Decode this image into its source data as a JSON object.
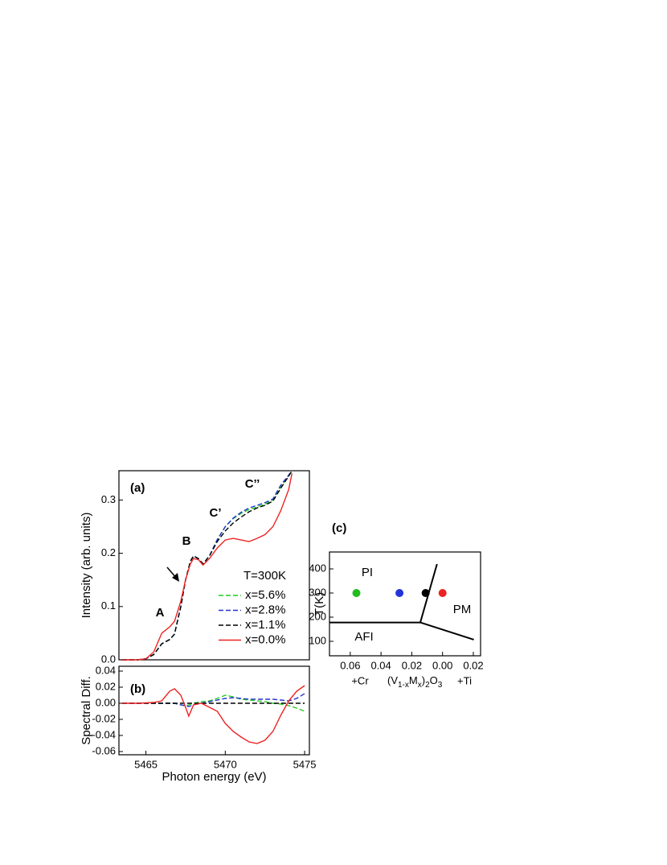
{
  "chart_data": [
    {
      "type": "line",
      "panel_label": "(a)",
      "ylabel": "Intensity (arb. units)",
      "xlim": [
        5463.3,
        5475.3
      ],
      "ylim": [
        0,
        0.355
      ],
      "yticks": [
        {
          "value": 0,
          "label": "0.0"
        },
        0.1,
        0.2,
        0.3
      ],
      "annotations": [
        "A",
        "B",
        "C’",
        "C’’"
      ],
      "legend_title": "T=300K",
      "x": [
        5463.5,
        5464.5,
        5465,
        5465.5,
        5466,
        5466.5,
        5466.8,
        5467.2,
        5467.5,
        5467.8,
        5468,
        5468.3,
        5468.6,
        5469,
        5469.5,
        5470,
        5470.5,
        5471,
        5471.5,
        5472,
        5472.5,
        5473,
        5473.5,
        5474,
        5474.2
      ],
      "series": [
        {
          "name": "x=5.6%",
          "color": "#22cc22",
          "style": "dashed",
          "values": [
            0,
            0,
            0.002,
            0.01,
            0.03,
            0.038,
            0.048,
            0.1,
            0.15,
            0.185,
            0.195,
            0.19,
            0.18,
            0.195,
            0.225,
            0.25,
            0.265,
            0.275,
            0.282,
            0.287,
            0.292,
            0.3,
            0.325,
            0.345,
            0.355
          ]
        },
        {
          "name": "x=2.8%",
          "color": "#2233cc",
          "style": "dashed",
          "values": [
            0,
            0,
            0.002,
            0.01,
            0.03,
            0.038,
            0.048,
            0.1,
            0.15,
            0.185,
            0.195,
            0.19,
            0.18,
            0.195,
            0.226,
            0.25,
            0.266,
            0.277,
            0.285,
            0.29,
            0.295,
            0.302,
            0.328,
            0.347,
            0.355
          ]
        },
        {
          "name": "x=1.1%",
          "color": "#000000",
          "style": "dashed",
          "values": [
            0,
            0,
            0.002,
            0.01,
            0.03,
            0.038,
            0.048,
            0.1,
            0.15,
            0.185,
            0.195,
            0.19,
            0.18,
            0.195,
            0.222,
            0.242,
            0.257,
            0.268,
            0.278,
            0.285,
            0.29,
            0.298,
            0.322,
            0.345,
            0.355
          ]
        },
        {
          "name": "x=0.0%",
          "color": "#ee2222",
          "style": "solid",
          "values": [
            0,
            0,
            0.002,
            0.015,
            0.05,
            0.062,
            0.072,
            0.11,
            0.15,
            0.18,
            0.19,
            0.188,
            0.178,
            0.19,
            0.21,
            0.225,
            0.228,
            0.225,
            0.222,
            0.228,
            0.235,
            0.25,
            0.28,
            0.32,
            0.35
          ]
        }
      ]
    },
    {
      "type": "line",
      "panel_label": "(b)",
      "ylabel": "Spectral Diff.",
      "xlabel": "Photon energy (eV)",
      "xlim": [
        5463.3,
        5475.3
      ],
      "ylim": [
        -0.064,
        0.046
      ],
      "xticks": [
        5465,
        5470,
        5475
      ],
      "yticks": [
        0.04,
        0.02,
        {
          "value": 0,
          "label": "0.00"
        },
        -0.02,
        -0.04,
        -0.06
      ],
      "x": [
        5463.5,
        5464.5,
        5465.5,
        5466,
        5466.5,
        5466.8,
        5467.2,
        5467.5,
        5467.7,
        5468,
        5468.5,
        5469,
        5469.5,
        5470,
        5470.5,
        5471,
        5471.5,
        5472,
        5472.5,
        5473,
        5473.5,
        5474,
        5474.5,
        5475
      ],
      "series": [
        {
          "color": "#22cc22",
          "style": "dashed",
          "values": [
            0,
            0,
            0,
            0,
            0,
            0,
            -0.002,
            -0.003,
            -0.002,
            0,
            0.002,
            0.003,
            0.006,
            0.01,
            0.008,
            0.005,
            0.004,
            0.003,
            0.002,
            0,
            -0.001,
            -0.003,
            -0.006,
            -0.01
          ]
        },
        {
          "color": "#2233cc",
          "style": "dashed",
          "values": [
            0,
            0,
            0,
            0,
            0,
            0,
            -0.002,
            -0.003,
            -0.004,
            -0.002,
            0,
            0.002,
            0.004,
            0.006,
            0.007,
            0.006,
            0.005,
            0.005,
            0.005,
            0.005,
            0.004,
            0.003,
            0.006,
            0.012
          ]
        },
        {
          "color": "#000000",
          "style": "dashed",
          "values": [
            0,
            0,
            0,
            0,
            0,
            0,
            0,
            0,
            0,
            0,
            0,
            0,
            0,
            0,
            0,
            0,
            0,
            0,
            0,
            0,
            0,
            0,
            0,
            0
          ]
        },
        {
          "color": "#ee2222",
          "style": "solid",
          "values": [
            0,
            0,
            0.001,
            0.003,
            0.015,
            0.018,
            0.01,
            -0.005,
            -0.016,
            -0.002,
            0,
            -0.005,
            -0.01,
            -0.025,
            -0.035,
            -0.042,
            -0.048,
            -0.05,
            -0.046,
            -0.035,
            -0.015,
            0.003,
            0.015,
            0.022
          ]
        }
      ]
    },
    {
      "type": "scatter",
      "panel_label": "(c)",
      "ylabel": "T(K)",
      "xlabel_left": "+Cr",
      "xlabel_right": "+Ti",
      "formula": [
        "(V",
        "1-x",
        "M",
        "x",
        ")",
        "2",
        "O",
        "3"
      ],
      "regions": [
        "PI",
        "PM",
        "AFI"
      ],
      "xlim": [
        -0.0735,
        0.0247
      ],
      "ylim": [
        40,
        470
      ],
      "xticks": [
        {
          "value": -0.06,
          "label": "0.06"
        },
        {
          "value": -0.04,
          "label": "0.04"
        },
        {
          "value": -0.02,
          "label": "0.02"
        },
        {
          "value": 0,
          "label": "0.00"
        },
        {
          "value": 0.02,
          "label": "0.02"
        }
      ],
      "yticks": [
        100,
        200,
        300,
        400
      ],
      "points": {
        "x": [
          -0.056,
          -0.028,
          -0.011,
          0
        ],
        "values": [
          300,
          300,
          300,
          300
        ],
        "colors": [
          "#22bb22",
          "#2233dd",
          "#000000",
          "#ee2222"
        ]
      },
      "lines": [
        {
          "x": [
            -0.0735,
            -0.0145
          ],
          "values": [
            178,
            178
          ]
        },
        {
          "x": [
            -0.0145,
            -0.0036
          ],
          "values": [
            178,
            420
          ]
        },
        {
          "x": [
            -0.0145,
            0.0203
          ],
          "values": [
            178,
            107
          ]
        }
      ]
    }
  ]
}
